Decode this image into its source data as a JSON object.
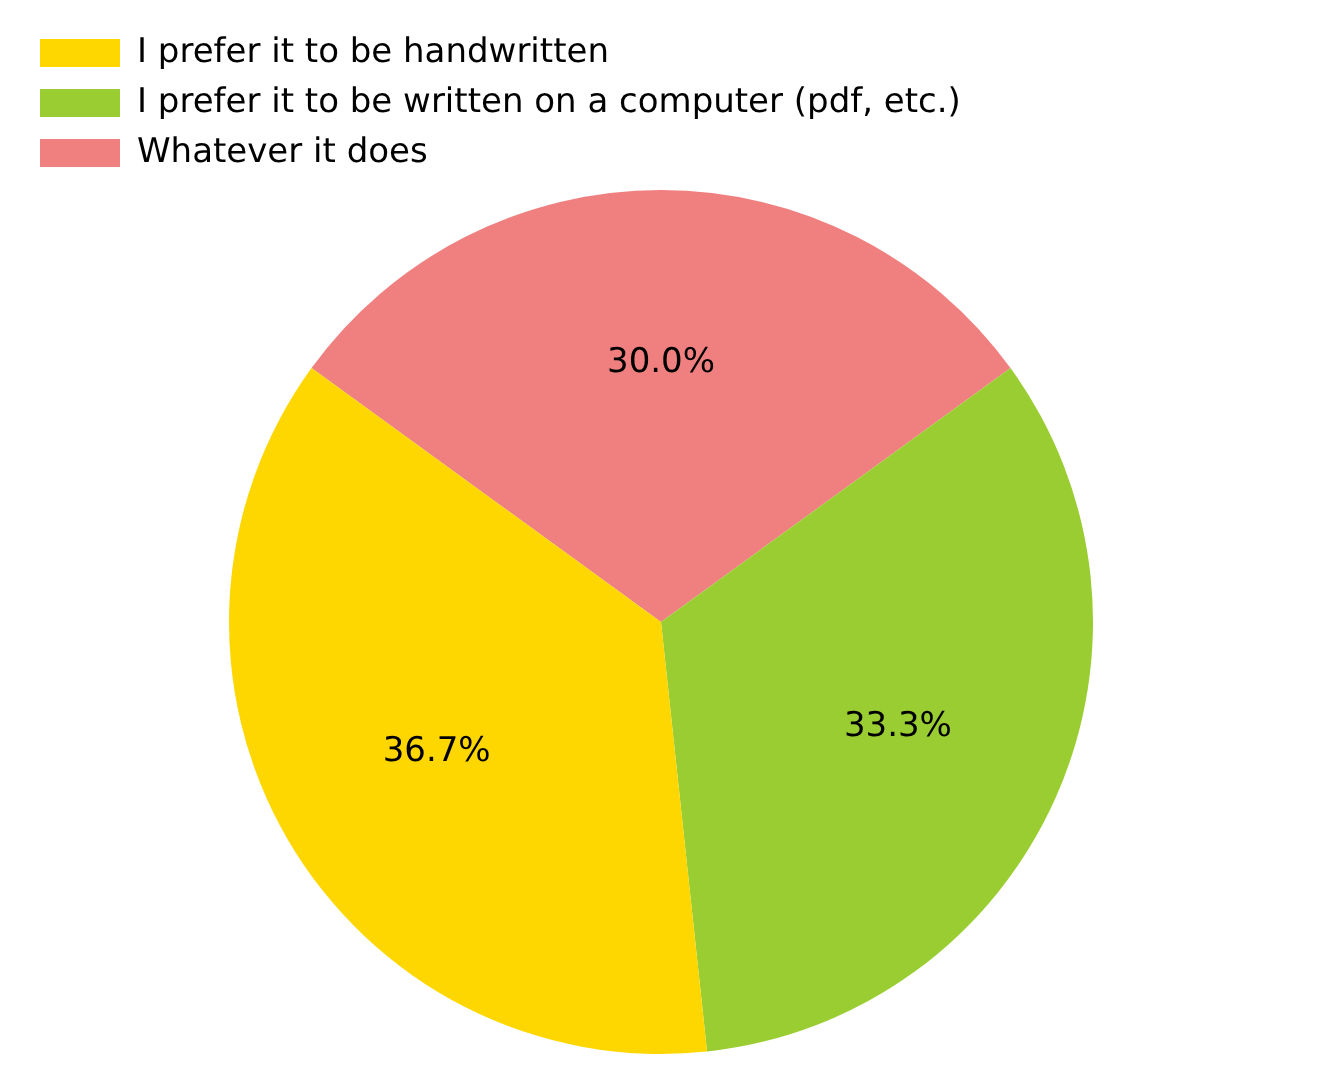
{
  "chart_data": {
    "type": "pie",
    "categories": [
      "I prefer it to be handwritten",
      "I prefer it to be written on a computer (pdf, etc.)",
      "Whatever it does"
    ],
    "values": [
      36.7,
      33.3,
      30.0
    ],
    "colors": [
      "#ffd700",
      "#9acd32",
      "#f08080"
    ],
    "value_labels": [
      "36.7%",
      "33.3%",
      "30.0%"
    ],
    "legend": "top left"
  }
}
